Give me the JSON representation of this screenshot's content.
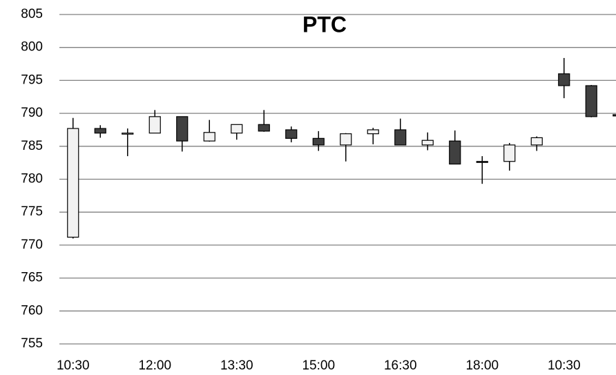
{
  "chart_data": {
    "type": "candlestick",
    "title": "PTC",
    "categories": [
      "10:30",
      null,
      null,
      "12:00",
      null,
      null,
      "13:30",
      null,
      null,
      "15:00",
      null,
      null,
      "16:30",
      null,
      null,
      "18:00",
      null,
      null,
      "10:30",
      null,
      null
    ],
    "open": [
      771.2,
      787.7,
      787.0,
      787.0,
      789.5,
      785.8,
      787.0,
      788.3,
      787.5,
      786.2,
      785.2,
      786.9,
      787.5,
      785.2,
      785.8,
      782.7,
      782.7,
      785.2,
      796.0,
      794.2,
      789.8
    ],
    "high": [
      789.3,
      788.2,
      787.7,
      790.5,
      789.5,
      789.0,
      788.3,
      790.5,
      788.0,
      787.3,
      787.0,
      787.8,
      789.2,
      787.1,
      787.4,
      783.5,
      785.5,
      786.5,
      798.4,
      794.3,
      790.0
    ],
    "low": [
      771.0,
      786.3,
      783.5,
      787.0,
      784.2,
      785.7,
      786.0,
      787.2,
      785.6,
      784.3,
      782.7,
      785.3,
      785.2,
      784.4,
      782.3,
      779.3,
      781.3,
      784.3,
      792.3,
      789.4,
      788.8
    ],
    "close": [
      787.7,
      787.0,
      787.0,
      789.5,
      785.8,
      787.1,
      788.3,
      787.3,
      786.2,
      785.2,
      786.9,
      787.5,
      785.2,
      785.9,
      782.3,
      782.6,
      785.2,
      786.3,
      794.2,
      789.5,
      789.6
    ],
    "up_color": "#f2f2f2",
    "down_color": "#404040",
    "ylim": [
      755,
      805
    ],
    "yticks": [
      755,
      760,
      765,
      770,
      775,
      780,
      785,
      790,
      795,
      800,
      805
    ],
    "grid": true
  }
}
